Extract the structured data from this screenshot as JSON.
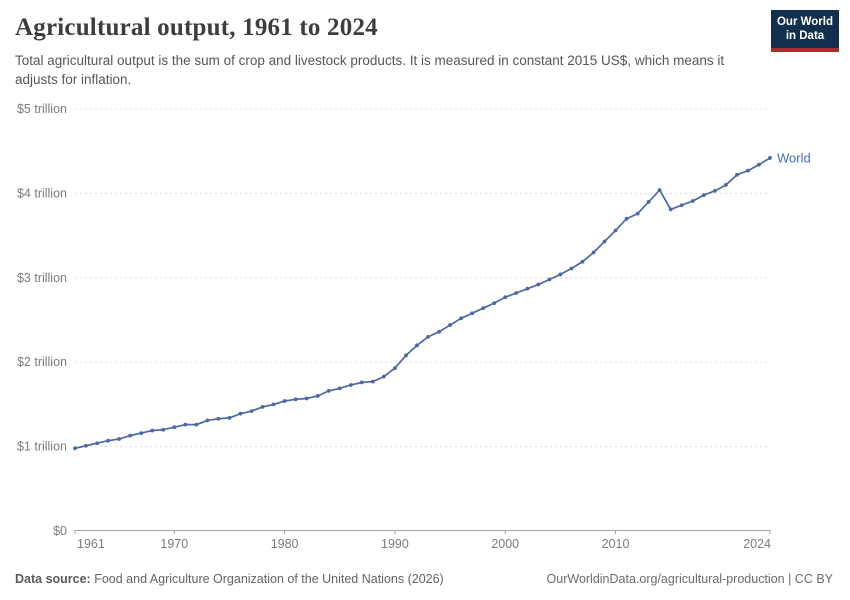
{
  "header": {
    "title": "Agricultural output, 1961 to 2024",
    "subtitle": "Total agricultural output is the sum of crop and livestock products. It is measured in constant 2015 US$, which means it adjusts for inflation.",
    "logo_line1": "Our World",
    "logo_line2": "in Data"
  },
  "footer": {
    "source_label": "Data source:",
    "source_text": " Food and Agriculture Organization of the United Nations (2026)",
    "attribution": "OurWorldinData.org/agricultural-production | CC BY"
  },
  "colors": {
    "line": "#4a68a5",
    "series_label": "#3f6bbf",
    "grid": "#e0e0e0",
    "axis": "#a3a3a3",
    "tick_text": "#7c7c7c",
    "logo_bg": "#12304e",
    "logo_bar": "#a82d2d"
  },
  "chart_data": {
    "type": "line",
    "title": "Agricultural output, 1961 to 2024",
    "xlabel": "",
    "ylabel": "",
    "unit": "trillion constant 2015 US$",
    "xlim": [
      1961,
      2024
    ],
    "ylim": [
      0,
      5
    ],
    "grid": "horizontal-dashed",
    "legend_position": "end-of-line-label",
    "x_ticks": [
      1961,
      1970,
      1980,
      1990,
      2000,
      2010,
      2024
    ],
    "y_ticks": [
      {
        "value": 0,
        "label": "$0"
      },
      {
        "value": 1,
        "label": "$1 trillion"
      },
      {
        "value": 2,
        "label": "$2 trillion"
      },
      {
        "value": 3,
        "label": "$3 trillion"
      },
      {
        "value": 4,
        "label": "$4 trillion"
      },
      {
        "value": 5,
        "label": "$5 trillion"
      }
    ],
    "series": [
      {
        "name": "World",
        "x": [
          1961,
          1962,
          1963,
          1964,
          1965,
          1966,
          1967,
          1968,
          1969,
          1970,
          1971,
          1972,
          1973,
          1974,
          1975,
          1976,
          1977,
          1978,
          1979,
          1980,
          1981,
          1982,
          1983,
          1984,
          1985,
          1986,
          1987,
          1988,
          1989,
          1990,
          1991,
          1992,
          1993,
          1994,
          1995,
          1996,
          1997,
          1998,
          1999,
          2000,
          2001,
          2002,
          2003,
          2004,
          2005,
          2006,
          2007,
          2008,
          2009,
          2010,
          2011,
          2012,
          2013,
          2014,
          2015,
          2016,
          2017,
          2018,
          2019,
          2020,
          2021,
          2022,
          2023,
          2024
        ],
        "values": [
          0.98,
          1.01,
          1.04,
          1.07,
          1.09,
          1.13,
          1.16,
          1.19,
          1.2,
          1.23,
          1.26,
          1.26,
          1.31,
          1.33,
          1.34,
          1.39,
          1.42,
          1.47,
          1.5,
          1.54,
          1.56,
          1.57,
          1.6,
          1.66,
          1.69,
          1.73,
          1.76,
          1.77,
          1.83,
          1.93,
          2.08,
          2.2,
          2.3,
          2.36,
          2.44,
          2.52,
          2.58,
          2.64,
          2.7,
          2.77,
          2.82,
          2.87,
          2.92,
          2.98,
          3.04,
          3.11,
          3.19,
          3.3,
          3.43,
          3.56,
          3.7,
          3.76,
          3.9,
          4.04,
          3.81,
          3.86,
          3.91,
          3.98,
          4.03,
          4.1,
          4.22,
          4.27,
          4.34,
          4.42
        ]
      }
    ]
  }
}
